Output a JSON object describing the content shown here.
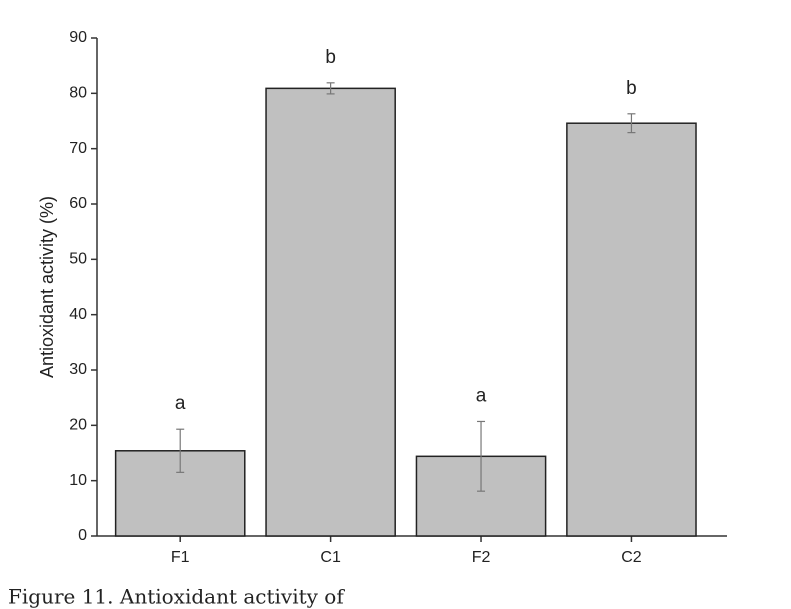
{
  "chart_data": {
    "type": "bar",
    "y_label": "Antioxidant activity (%)",
    "categories": [
      "F1",
      "C1",
      "F2",
      "C2"
    ],
    "values": [
      15.4,
      80.9,
      14.4,
      74.6
    ],
    "errors": [
      3.9,
      1.0,
      6.3,
      1.7
    ],
    "annotations": [
      "a",
      "b",
      "a",
      "b"
    ],
    "color": "#c0c0c0",
    "ylim": [
      0,
      90
    ],
    "yticks": [
      0,
      10,
      20,
      30,
      40,
      50,
      60,
      70,
      80,
      90
    ],
    "caption": "Figure 11. Antioxidant activity of"
  }
}
